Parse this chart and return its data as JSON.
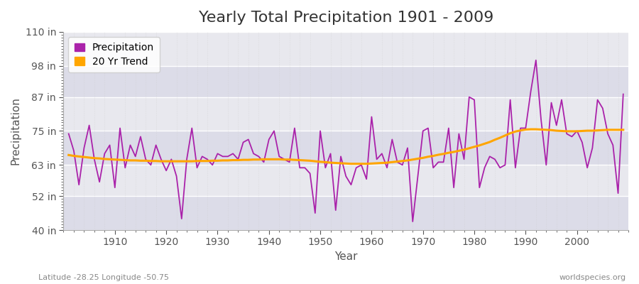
{
  "title": "Yearly Total Precipitation 1901 - 2009",
  "xlabel": "Year",
  "ylabel": "Precipitation",
  "lat_lon_label": "Latitude -28.25 Longitude -50.75",
  "watermark": "worldspecies.org",
  "years": [
    1901,
    1902,
    1903,
    1904,
    1905,
    1906,
    1907,
    1908,
    1909,
    1910,
    1911,
    1912,
    1913,
    1914,
    1915,
    1916,
    1917,
    1918,
    1919,
    1920,
    1921,
    1922,
    1923,
    1924,
    1925,
    1926,
    1927,
    1928,
    1929,
    1930,
    1931,
    1932,
    1933,
    1934,
    1935,
    1936,
    1937,
    1938,
    1939,
    1940,
    1941,
    1942,
    1943,
    1944,
    1945,
    1946,
    1947,
    1948,
    1949,
    1950,
    1951,
    1952,
    1953,
    1954,
    1955,
    1956,
    1957,
    1958,
    1959,
    1960,
    1961,
    1962,
    1963,
    1964,
    1965,
    1966,
    1967,
    1968,
    1969,
    1970,
    1971,
    1972,
    1973,
    1974,
    1975,
    1976,
    1977,
    1978,
    1979,
    1980,
    1981,
    1982,
    1983,
    1984,
    1985,
    1986,
    1987,
    1988,
    1989,
    1990,
    1991,
    1992,
    1993,
    1994,
    1995,
    1996,
    1997,
    1998,
    1999,
    2000,
    2001,
    2002,
    2003,
    2004,
    2005,
    2006,
    2007,
    2008,
    2009
  ],
  "precip_in": [
    74,
    68,
    56,
    69,
    77,
    65,
    57,
    67,
    70,
    55,
    76,
    62,
    70,
    66,
    73,
    65,
    63,
    70,
    65,
    61,
    65,
    59,
    44,
    65,
    76,
    62,
    66,
    65,
    63,
    67,
    66,
    66,
    67,
    65,
    71,
    72,
    67,
    66,
    64,
    72,
    75,
    66,
    65,
    64,
    76,
    62,
    62,
    60,
    46,
    75,
    62,
    67,
    47,
    66,
    59,
    56,
    62,
    63,
    58,
    80,
    65,
    67,
    62,
    72,
    64,
    63,
    69,
    43,
    59,
    75,
    76,
    62,
    64,
    64,
    76,
    55,
    74,
    65,
    87,
    86,
    55,
    62,
    66,
    65,
    62,
    63,
    86,
    62,
    76,
    76,
    89,
    100,
    79,
    63,
    85,
    77,
    86,
    74,
    73,
    75,
    71,
    62,
    69,
    86,
    83,
    74,
    70,
    53,
    88
  ],
  "trend_in": [
    66.5,
    66.2,
    66.0,
    65.8,
    65.6,
    65.4,
    65.3,
    65.1,
    65.0,
    64.9,
    64.8,
    64.7,
    64.6,
    64.6,
    64.5,
    64.5,
    64.4,
    64.4,
    64.3,
    64.3,
    64.3,
    64.3,
    64.3,
    64.3,
    64.3,
    64.4,
    64.4,
    64.4,
    64.5,
    64.5,
    64.6,
    64.6,
    64.7,
    64.7,
    64.8,
    64.8,
    64.9,
    64.9,
    65.0,
    65.0,
    65.0,
    65.0,
    64.9,
    64.9,
    64.8,
    64.7,
    64.6,
    64.5,
    64.3,
    64.1,
    64.0,
    63.8,
    63.7,
    63.6,
    63.5,
    63.4,
    63.4,
    63.4,
    63.4,
    63.5,
    63.6,
    63.7,
    63.8,
    64.0,
    64.2,
    64.4,
    64.6,
    64.9,
    65.2,
    65.5,
    65.9,
    66.2,
    66.6,
    66.9,
    67.3,
    67.6,
    68.0,
    68.4,
    68.9,
    69.4,
    69.9,
    70.5,
    71.1,
    71.9,
    72.6,
    73.4,
    74.2,
    74.8,
    75.2,
    75.5,
    75.6,
    75.6,
    75.5,
    75.4,
    75.3,
    75.1,
    75.0,
    74.9,
    74.9,
    74.9,
    75.0,
    75.1,
    75.1,
    75.2,
    75.3,
    75.4,
    75.4,
    75.4,
    75.4
  ],
  "precip_color": "#AA22AA",
  "trend_color": "#FFA500",
  "bg_color": "#FFFFFF",
  "plot_bg_color": "#EBEBEB",
  "stripe_color": "#E0E0E8",
  "grid_major_color": "#FFFFFF",
  "grid_minor_color": "#DDDDDD",
  "ylim": [
    40,
    110
  ],
  "yticks": [
    40,
    52,
    63,
    75,
    87,
    98,
    110
  ],
  "ytick_labels": [
    "40 in",
    "52 in",
    "63 in",
    "75 in",
    "87 in",
    "98 in",
    "110 in"
  ],
  "xticks": [
    1910,
    1920,
    1930,
    1940,
    1950,
    1960,
    1970,
    1980,
    1990,
    2000
  ],
  "title_fontsize": 16,
  "axis_label_fontsize": 11,
  "tick_fontsize": 10,
  "legend_fontsize": 10,
  "stripe_ranges": [
    [
      40,
      52
    ],
    [
      63,
      75
    ],
    [
      87,
      98
    ]
  ]
}
